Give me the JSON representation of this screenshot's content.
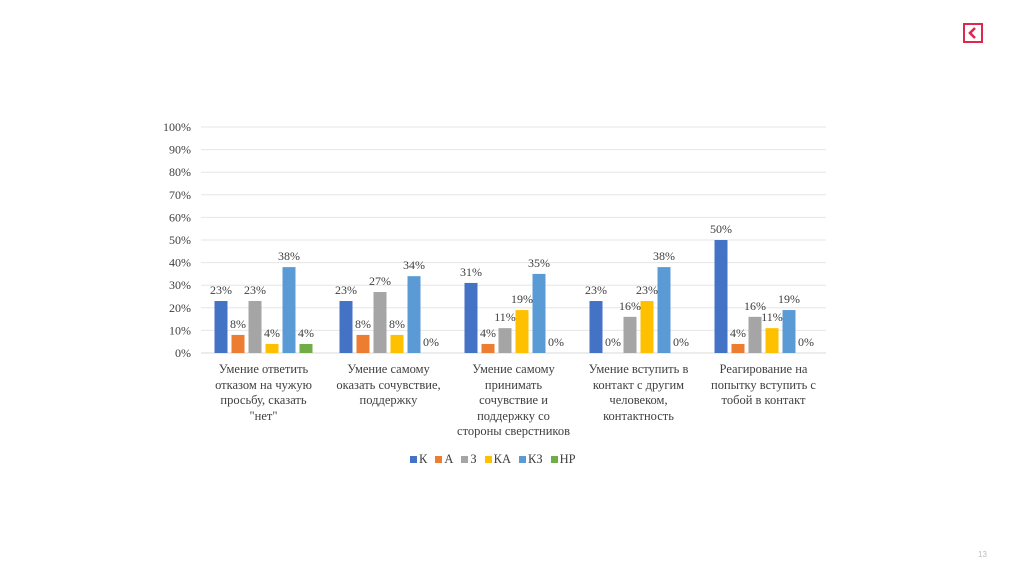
{
  "slide": {
    "page_number": "13",
    "logo_icon": "back-arrow-icon",
    "logo_color": "#e0284f"
  },
  "chart_data": {
    "type": "bar",
    "title": "",
    "xlabel": "",
    "ylabel": "",
    "ylim": [
      0,
      100
    ],
    "y_ticks": [
      "0%",
      "10%",
      "20%",
      "30%",
      "40%",
      "50%",
      "60%",
      "70%",
      "80%",
      "90%",
      "100%"
    ],
    "grid": true,
    "legend_position": "bottom",
    "categories": [
      "Умение ответить отказом на чужую просьбу, сказать \"нет\"",
      "Умение самому оказать сочувствие, поддержку",
      "Умение самому принимать сочувствие и поддержку со стороны сверстников",
      "Умение вступить в контакт с другим человеком, контактность",
      "Реагирование на попытку вступить с тобой в контакт"
    ],
    "category_lines": [
      [
        "Умение ответить",
        "отказом на чужую",
        "просьбу, сказать",
        "\"нет\""
      ],
      [
        "Умение самому",
        "оказать сочувствие,",
        "поддержку"
      ],
      [
        "Умение самому",
        "принимать",
        "сочувствие и",
        "поддержку со",
        "стороны сверстников"
      ],
      [
        "Умение вступить в",
        "контакт с другим",
        "человеком,",
        "контактность"
      ],
      [
        "Реагирование на",
        "попытку вступить с",
        "тобой в контакт"
      ]
    ],
    "series": [
      {
        "name": "К",
        "color": "#4472c4",
        "values": [
          23,
          23,
          31,
          23,
          50
        ]
      },
      {
        "name": "А",
        "color": "#ed7d31",
        "values": [
          8,
          8,
          4,
          0,
          4
        ]
      },
      {
        "name": "З",
        "color": "#a5a5a5",
        "values": [
          23,
          27,
          11,
          16,
          16
        ]
      },
      {
        "name": "КА",
        "color": "#ffc000",
        "values": [
          4,
          8,
          19,
          23,
          11
        ]
      },
      {
        "name": "КЗ",
        "color": "#5b9bd5",
        "values": [
          38,
          34,
          35,
          38,
          19
        ]
      },
      {
        "name": "НР",
        "color": "#70ad47",
        "values": [
          4,
          0,
          0,
          0,
          0
        ]
      }
    ],
    "value_suffix": "%"
  }
}
